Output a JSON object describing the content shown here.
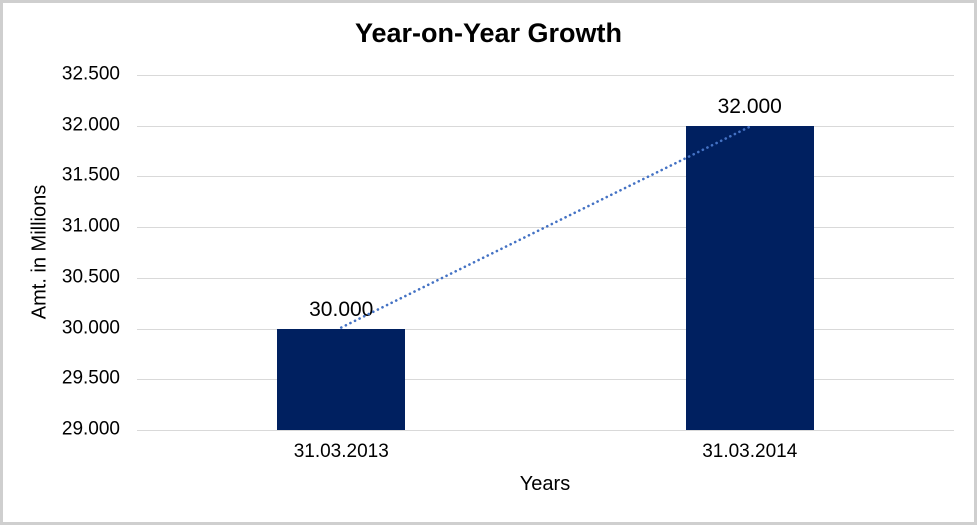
{
  "chart_data": {
    "type": "bar",
    "title": "Year-on-Year Growth",
    "xlabel": "Years",
    "ylabel": "Amt. in Millions",
    "categories": [
      "31.03.2013",
      "31.03.2014"
    ],
    "values": [
      30000,
      32000
    ],
    "value_labels": [
      "30.000",
      "32.000"
    ],
    "ylim": [
      29000,
      32500
    ],
    "ytick_step": 500,
    "ytick_labels": [
      "29.000",
      "29.500",
      "30.000",
      "30.500",
      "31.000",
      "31.500",
      "32.000",
      "32.500"
    ],
    "grid": "horizontal-only",
    "legend": "none",
    "colors": {
      "bar_fill": "#002060",
      "trendline": "#4472C4",
      "gridline": "#d9d9d9",
      "text": "#000000",
      "frame_border": "#cfcfcf",
      "background": "#ffffff"
    },
    "trendline": {
      "type": "linear",
      "style": "dotted",
      "connects": "bar tops"
    }
  }
}
